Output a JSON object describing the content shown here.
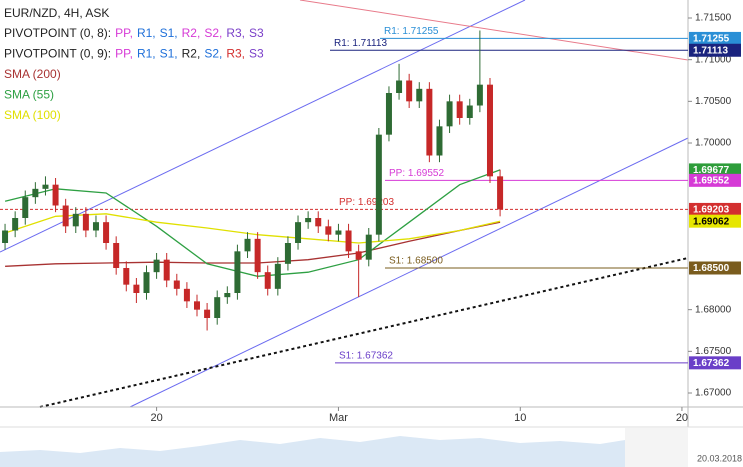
{
  "chart_data": {
    "type": "candlestick",
    "title": "EUR/NZD, 4H, ASK",
    "pivot_legends": [
      {
        "prefix": "PIVOTPOINT (0, 8):",
        "items": [
          {
            "text": "PP,",
            "color": "#d63ad6"
          },
          {
            "text": "R1,",
            "color": "#1e6fd9"
          },
          {
            "text": "S1,",
            "color": "#1e6fd9"
          },
          {
            "text": "R2,",
            "color": "#d63ad6"
          },
          {
            "text": "S2,",
            "color": "#d63ad6"
          },
          {
            "text": "R3,",
            "color": "#7a3fc8"
          },
          {
            "text": "S3",
            "color": "#7a3fc8"
          }
        ]
      },
      {
        "prefix": "PIVOTPOINT (0, 9):",
        "items": [
          {
            "text": "PP,",
            "color": "#d63ad6"
          },
          {
            "text": "R1,",
            "color": "#1e6fd9"
          },
          {
            "text": "S1,",
            "color": "#1e6fd9"
          },
          {
            "text": "R2,",
            "color": "#222222"
          },
          {
            "text": "S2,",
            "color": "#1e6fd9"
          },
          {
            "text": "R3,",
            "color": "#d32f2f"
          },
          {
            "text": "S3",
            "color": "#7a3fc8"
          }
        ]
      }
    ],
    "x": [
      0,
      1,
      2,
      3,
      4,
      5,
      6,
      7,
      8,
      9,
      10,
      11,
      12,
      13,
      14,
      15,
      16,
      17,
      18,
      19,
      20,
      21,
      22,
      23,
      24,
      25,
      26,
      27,
      28,
      29,
      30,
      31,
      32,
      33,
      34,
      35,
      36,
      37,
      38,
      39,
      40,
      41,
      42,
      43,
      44,
      45,
      46,
      47,
      48,
      49
    ],
    "open": [
      1.688,
      1.6895,
      1.691,
      1.6935,
      1.6945,
      1.695,
      1.6925,
      1.69,
      1.6915,
      1.6895,
      1.6905,
      1.688,
      1.685,
      1.683,
      1.682,
      1.6845,
      1.686,
      1.6835,
      1.6825,
      1.681,
      1.68,
      1.679,
      1.6815,
      1.682,
      1.687,
      1.6885,
      1.6845,
      1.6825,
      1.6855,
      1.688,
      1.6905,
      1.691,
      1.69,
      1.689,
      1.6895,
      1.687,
      1.686,
      1.689,
      1.701,
      1.706,
      1.7075,
      1.705,
      1.7065,
      1.6985,
      1.702,
      1.705,
      1.703,
      1.7045,
      1.707,
      1.696
    ],
    "high": [
      1.6903,
      1.6918,
      1.6943,
      1.6953,
      1.696,
      1.6958,
      1.6933,
      1.6923,
      1.6923,
      1.6913,
      1.6913,
      1.6888,
      1.6858,
      1.6838,
      1.6853,
      1.6868,
      1.6868,
      1.6843,
      1.6833,
      1.6818,
      1.6808,
      1.6823,
      1.6828,
      1.6878,
      1.6893,
      1.6893,
      1.6853,
      1.6863,
      1.6888,
      1.6913,
      1.6918,
      1.6918,
      1.6908,
      1.6903,
      1.6903,
      1.6878,
      1.6898,
      1.7018,
      1.7068,
      1.7095,
      1.7083,
      1.7073,
      1.7073,
      1.7028,
      1.7058,
      1.7058,
      1.7053,
      1.7135,
      1.7078,
      1.6968
    ],
    "low": [
      1.6872,
      1.6887,
      1.6902,
      1.6927,
      1.6937,
      1.6917,
      1.6892,
      1.6892,
      1.6887,
      1.6887,
      1.6872,
      1.6842,
      1.6822,
      1.6808,
      1.6812,
      1.6837,
      1.6827,
      1.6817,
      1.6802,
      1.6792,
      1.6775,
      1.6782,
      1.6807,
      1.6812,
      1.6862,
      1.6837,
      1.6817,
      1.6817,
      1.6847,
      1.6872,
      1.6897,
      1.6892,
      1.6882,
      1.6882,
      1.6862,
      1.6815,
      1.6852,
      1.6882,
      1.7002,
      1.7052,
      1.7042,
      1.7042,
      1.6977,
      1.6977,
      1.7012,
      1.7022,
      1.7022,
      1.7037,
      1.6952,
      1.6912
    ],
    "close": [
      1.6895,
      1.691,
      1.6935,
      1.6945,
      1.695,
      1.6925,
      1.69,
      1.6915,
      1.6895,
      1.6905,
      1.688,
      1.685,
      1.683,
      1.682,
      1.6845,
      1.686,
      1.6835,
      1.6825,
      1.681,
      1.68,
      1.679,
      1.6815,
      1.682,
      1.687,
      1.6885,
      1.6845,
      1.6825,
      1.6855,
      1.688,
      1.6905,
      1.691,
      1.69,
      1.689,
      1.6895,
      1.687,
      1.686,
      1.689,
      1.701,
      1.706,
      1.7075,
      1.705,
      1.7065,
      1.6985,
      1.702,
      1.705,
      1.703,
      1.7045,
      1.707,
      1.696,
      1.69203
    ],
    "up_color": "#2e6b34",
    "down_color": "#c62828",
    "series": [
      {
        "name": "SMA (200)",
        "color": "#a83232",
        "x": [
          0,
          5,
          10,
          15,
          20,
          25,
          30,
          35,
          40,
          45,
          49
        ],
        "values": [
          1.6852,
          1.6855,
          1.6856,
          1.6857,
          1.6856,
          1.6856,
          1.686,
          1.6868,
          1.6882,
          1.6895,
          1.6905
        ]
      },
      {
        "name": "SMA (55)",
        "color": "#2ea043",
        "x": [
          0,
          5,
          10,
          15,
          20,
          25,
          30,
          35,
          40,
          45,
          49
        ],
        "values": [
          1.693,
          1.6945,
          1.694,
          1.69,
          1.6855,
          1.684,
          1.6845,
          1.686,
          1.6905,
          1.695,
          1.69677
        ]
      },
      {
        "name": "SMA (100)",
        "color": "#e0e000",
        "x": [
          0,
          5,
          10,
          15,
          20,
          25,
          30,
          35,
          40,
          45,
          49
        ],
        "values": [
          1.6892,
          1.6912,
          1.6915,
          1.6905,
          1.6898,
          1.689,
          1.6885,
          1.688,
          1.6885,
          1.6895,
          1.69062
        ]
      }
    ],
    "levels": [
      {
        "label": "R1: 1.71255",
        "value": 1.71255,
        "color": "#2a8fd6"
      },
      {
        "label": "R1: 1.71113",
        "value": 1.71113,
        "color": "#1a237e"
      },
      {
        "label": "PP: 1.69552",
        "value": 1.69552,
        "color": "#d63ad6"
      },
      {
        "label": "PP: 1.69203",
        "value": 1.69203,
        "color": "#d32f2f"
      },
      {
        "label": "S1: 1.68500",
        "value": 1.685,
        "color": "#7a5c1e"
      },
      {
        "label": "S1: 1.67362",
        "value": 1.67362,
        "color": "#6a3fc8"
      }
    ],
    "price_tags": [
      {
        "value": 1.71255,
        "label": "1.71255",
        "color": "#2a8fd6",
        "text_color": "#ffffff"
      },
      {
        "value": 1.71113,
        "label": "1.71113",
        "color": "#1a237e",
        "text_color": "#ffffff"
      },
      {
        "value": 1.69677,
        "label": "1.69677",
        "color": "#2e9d3a",
        "text_color": "#ffffff"
      },
      {
        "value": 1.69552,
        "label": "1.69552",
        "color": "#d63ad6",
        "text_color": "#ffffff"
      },
      {
        "value": 1.69203,
        "label": "1.69203",
        "color": "#d32f2f",
        "text_color": "#ffffff"
      },
      {
        "value": 1.69062,
        "label": "1.69062",
        "color": "#e6e600",
        "text_color": "#000000"
      },
      {
        "value": 1.685,
        "label": "1.68500",
        "color": "#7a5c1e",
        "text_color": "#ffffff"
      },
      {
        "value": 1.67362,
        "label": "1.67362",
        "color": "#6a3fc8",
        "text_color": "#ffffff"
      }
    ],
    "xlim": [
      -0.5,
      67.6
    ],
    "xticks": [
      {
        "value": 15,
        "label": "20"
      },
      {
        "value": 33,
        "label": "Mar"
      },
      {
        "value": 51,
        "label": "10"
      },
      {
        "value": 67,
        "label": "20"
      }
    ],
    "ylim": [
      1.66832,
      1.71716
    ],
    "yticks": [
      {
        "value": 1.67,
        "label": "1.67000"
      },
      {
        "value": 1.675,
        "label": "1.67500"
      },
      {
        "value": 1.68,
        "label": "1.68000"
      },
      {
        "value": 1.7,
        "label": "1.70000"
      },
      {
        "value": 1.705,
        "label": "1.70500"
      },
      {
        "value": 1.71,
        "label": "1.71000"
      },
      {
        "value": 1.715,
        "label": "1.71500"
      }
    ],
    "date_label": "20.03.2018"
  }
}
